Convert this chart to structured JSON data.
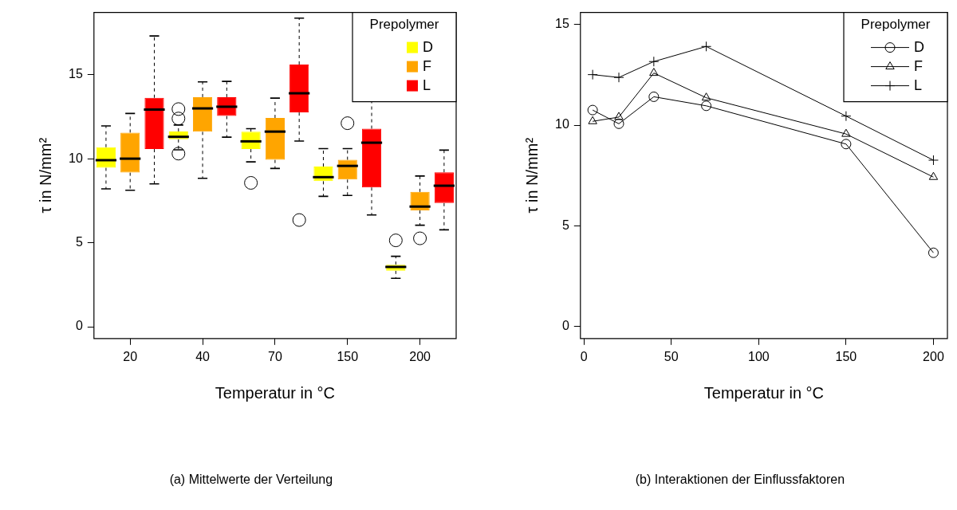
{
  "chart_data": [
    {
      "type": "box",
      "categories": [
        null,
        "20",
        null,
        null,
        "40",
        null,
        null,
        "70",
        null,
        null,
        "150",
        null,
        null,
        "200",
        null
      ],
      "xlabel": "Temperatur in °C",
      "ylabel": "τ in N/mm²",
      "legend_title": "Prepolymer",
      "legend": "top right",
      "grid": false,
      "ylim": [
        -0.7,
        18.7
      ],
      "yticks": [
        0,
        5,
        10,
        15
      ],
      "annotations": [
        "(a) Mittelwerte der Verteilung"
      ],
      "series": [
        {
          "name": "D",
          "color": "#ffff00",
          "boxes": [
            {
              "low": 8.2,
              "q1": 9.46,
              "median": 9.91,
              "q3": 10.68,
              "high": 11.95
            },
            null,
            null,
            {
              "low": 10.53,
              "q1": 11.15,
              "median": 11.3,
              "q3": 11.62,
              "high": 12.0,
              "outliers": [
                12.95,
                12.39,
                10.3
              ]
            },
            null,
            null,
            {
              "low": 9.81,
              "q1": 10.57,
              "median": 11.03,
              "q3": 11.6,
              "high": 11.78,
              "outliers": [
                8.56
              ]
            },
            null,
            null,
            {
              "low": 7.76,
              "q1": 8.66,
              "median": 8.9,
              "q3": 9.53,
              "high": 10.6
            },
            null,
            null,
            {
              "low": 2.88,
              "q1": 3.33,
              "median": 3.56,
              "q3": 3.69,
              "high": 4.19,
              "outliers": [
                5.14
              ]
            },
            null,
            null
          ]
        },
        {
          "name": "F",
          "color": "#ffa500",
          "boxes": [
            null,
            {
              "low": 8.12,
              "q1": 9.17,
              "median": 10.0,
              "q3": 11.55,
              "high": 12.69
            },
            null,
            null,
            {
              "low": 8.83,
              "q1": 11.6,
              "median": 12.99,
              "q3": 13.66,
              "high": 14.57
            },
            null,
            null,
            {
              "low": 9.42,
              "q1": 9.93,
              "median": 11.61,
              "q3": 12.42,
              "high": 13.6
            },
            null,
            null,
            {
              "low": 7.81,
              "q1": 8.76,
              "median": 9.57,
              "q3": 9.93,
              "high": 10.6,
              "outliers": [
                12.11
              ]
            },
            null,
            null,
            {
              "low": 6.04,
              "q1": 6.92,
              "median": 7.15,
              "q3": 8.02,
              "high": 8.97,
              "outliers": [
                5.26
              ]
            },
            null
          ]
        },
        {
          "name": "L",
          "color": "#ff0000",
          "boxes": [
            null,
            null,
            {
              "low": 8.5,
              "q1": 10.57,
              "median": 12.92,
              "q3": 13.62,
              "high": 17.3
            },
            null,
            null,
            {
              "low": 11.28,
              "q1": 12.54,
              "median": 13.09,
              "q3": 13.66,
              "high": 14.6
            },
            null,
            null,
            {
              "low": 11.05,
              "q1": 12.75,
              "median": 13.89,
              "q3": 15.6,
              "high": 18.36,
              "outliers": [
                6.35
              ]
            },
            null,
            null,
            {
              "low": 6.65,
              "q1": 8.29,
              "median": 10.95,
              "q3": 11.78,
              "high": 13.87
            },
            null,
            null,
            {
              "low": 5.77,
              "q1": 7.36,
              "median": 8.39,
              "q3": 9.19,
              "high": 10.51
            }
          ]
        }
      ]
    },
    {
      "type": "line",
      "x": [
        5,
        20,
        40,
        70,
        150,
        200
      ],
      "xlabel": "Temperatur in °C",
      "ylabel": "τ in N/mm²",
      "legend_title": "Prepolymer",
      "legend": "top right",
      "grid": false,
      "xlim": [
        -2,
        208
      ],
      "xticks": [
        0,
        50,
        100,
        150,
        200
      ],
      "ylim": [
        -0.6,
        15.6
      ],
      "yticks": [
        0,
        5,
        10,
        15
      ],
      "annotations": [
        "(b) Interaktionen der Einflussfaktoren"
      ],
      "series": [
        {
          "name": "D",
          "color": "#000000",
          "marker": "circle",
          "values": [
            10.75,
            10.07,
            11.41,
            10.96,
            9.06,
            3.66
          ]
        },
        {
          "name": "F",
          "color": "#000000",
          "marker": "triangle",
          "values": [
            10.19,
            10.4,
            12.59,
            11.36,
            9.56,
            7.42
          ]
        },
        {
          "name": "L",
          "color": "#000000",
          "marker": "cross",
          "values": [
            12.51,
            12.37,
            13.16,
            13.91,
            10.45,
            8.26
          ]
        }
      ]
    }
  ]
}
